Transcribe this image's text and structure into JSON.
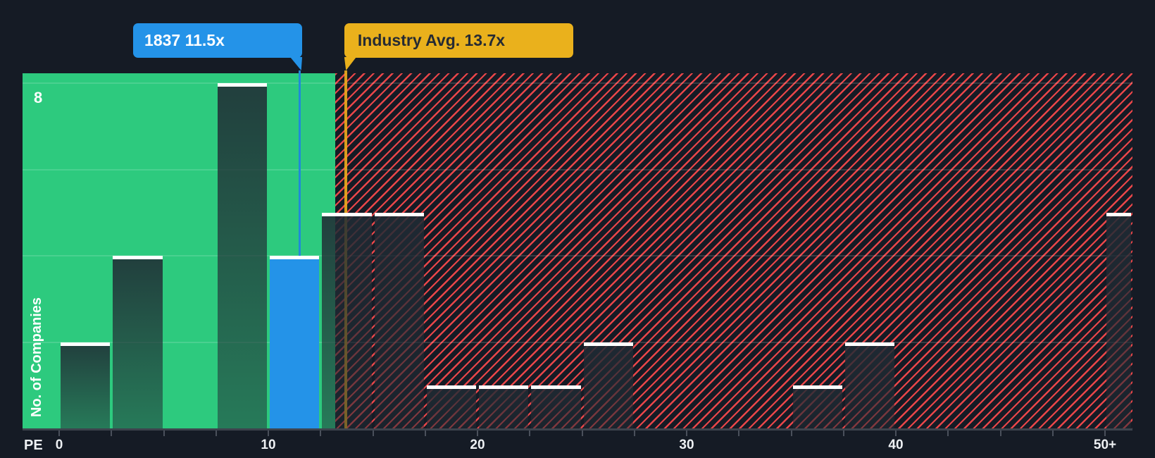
{
  "colors": {
    "background": "#151b25",
    "green": "#2dca7e",
    "hatch_red": "#e94649",
    "blue": "#2493e8",
    "yellow": "#eab11c",
    "bar_cap": "#ffffff"
  },
  "y_axis": {
    "label": "No. of Companies",
    "top_tick_label": "8"
  },
  "x_axis": {
    "label": "PE",
    "ticks": [
      {
        "pe": 0,
        "label": "0"
      },
      {
        "pe": 10,
        "label": "10"
      },
      {
        "pe": 20,
        "label": "20"
      },
      {
        "pe": 30,
        "label": "30"
      },
      {
        "pe": 40,
        "label": "40"
      },
      {
        "pe": 50,
        "label": "50+"
      }
    ]
  },
  "annotations": {
    "company": {
      "label": "1837 11.5x",
      "pe": 11.5
    },
    "industry": {
      "label": "Industry Avg. 13.7x",
      "pe": 13.7
    }
  },
  "chart_data": {
    "type": "bar",
    "xlabel": "PE",
    "ylabel": "No. of Companies",
    "bucket_width_pe": 2.5,
    "categories": [
      "0-2.5",
      "2.5-5",
      "5-7.5",
      "7.5-10",
      "10-12.5",
      "12.5-15",
      "15-17.5",
      "17.5-20",
      "20-22.5",
      "22.5-25",
      "25-27.5",
      "27.5-30",
      "30-32.5",
      "32.5-35",
      "35-37.5",
      "37.5-40",
      "40-42.5",
      "42.5-45",
      "45-47.5",
      "47.5-50",
      "50+"
    ],
    "values": [
      2,
      4,
      0,
      8,
      4,
      5,
      5,
      1,
      1,
      1,
      2,
      0,
      0,
      0,
      1,
      2,
      0,
      0,
      0,
      0,
      5
    ],
    "highlighted_bucket_index": 4,
    "highlighted_bucket_meaning": "company PE bucket",
    "company_pe": 11.5,
    "industry_avg_pe": 13.7,
    "green_region_end_pe": 13.2,
    "gridline_values": [
      2,
      4,
      6,
      8
    ],
    "ylim": [
      0,
      8.2
    ],
    "xlim_pe": [
      -1.75,
      51.3
    ],
    "minor_tick_step_pe": 2.5,
    "legend": "off",
    "grid": "horizontal"
  }
}
